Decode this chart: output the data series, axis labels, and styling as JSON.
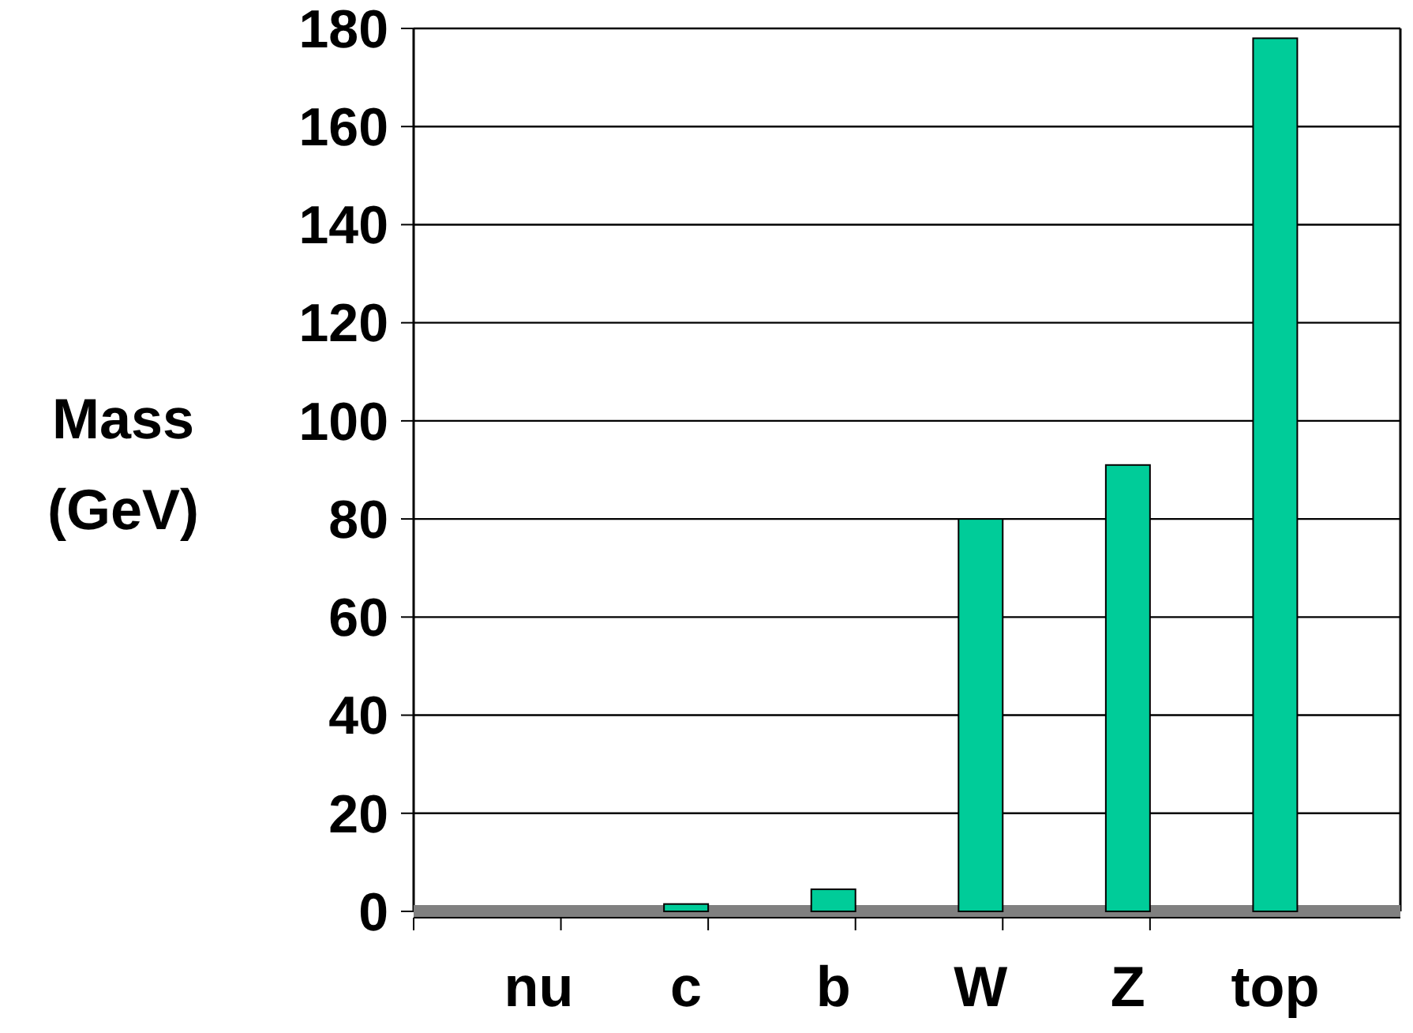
{
  "chart_data": {
    "type": "bar",
    "ylabel": "Mass (GeV)",
    "categories": [
      "nu",
      "c",
      "b",
      "W",
      "Z",
      "top"
    ],
    "values": [
      0,
      1.5,
      4.5,
      80,
      91,
      178
    ],
    "color": "#00cc99",
    "ylim": [
      0,
      180
    ],
    "yticks": [
      0,
      20,
      40,
      60,
      80,
      100,
      120,
      140,
      160,
      180
    ],
    "grid": "y"
  }
}
